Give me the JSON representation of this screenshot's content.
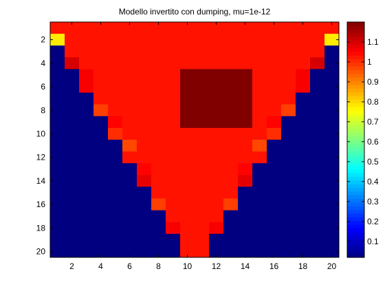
{
  "chart_data": {
    "type": "heatmap",
    "title": "Modello invertito con dumping, mu=1e-12",
    "xlabel": "",
    "ylabel": "",
    "xlim": [
      0.5,
      20.5
    ],
    "ylim": [
      0.5,
      20.5
    ],
    "y_reversed": true,
    "xticks": [
      2,
      4,
      6,
      8,
      10,
      12,
      14,
      16,
      18,
      20
    ],
    "yticks": [
      2,
      4,
      6,
      8,
      10,
      12,
      14,
      16,
      18,
      20
    ],
    "colormap": "jet",
    "clim": [
      0.02,
      1.2
    ],
    "colorbar": {
      "ticks": [
        0.1,
        0.2,
        0.3,
        0.4,
        0.5,
        0.6,
        0.7,
        0.8,
        0.9,
        1,
        1.1
      ],
      "tick_labels": [
        "0.1",
        "0.2",
        "0.3",
        "0.4",
        "0.5",
        "0.6",
        "0.7",
        "0.8",
        "0.9",
        "1",
        "1.1"
      ]
    },
    "values": [
      [
        1.03,
        1.03,
        1.03,
        1.03,
        1.03,
        1.03,
        1.03,
        1.03,
        1.03,
        1.03,
        1.03,
        1.03,
        1.03,
        1.03,
        1.03,
        1.03,
        1.03,
        1.03,
        1.03,
        1.03
      ],
      [
        0.78,
        1.03,
        1.03,
        1.03,
        1.03,
        1.03,
        1.03,
        1.03,
        1.03,
        1.03,
        1.03,
        1.03,
        1.03,
        1.03,
        1.03,
        1.03,
        1.03,
        1.03,
        1.03,
        0.78
      ],
      [
        0.02,
        1.03,
        1.03,
        1.03,
        1.03,
        1.03,
        1.03,
        1.03,
        1.03,
        1.03,
        1.03,
        1.03,
        1.03,
        1.03,
        1.03,
        1.03,
        1.03,
        1.03,
        1.03,
        0.02
      ],
      [
        0.02,
        1.1,
        1.03,
        1.03,
        1.03,
        1.03,
        1.03,
        1.03,
        1.03,
        1.03,
        1.03,
        1.03,
        1.03,
        1.03,
        1.03,
        1.03,
        1.03,
        1.03,
        1.1,
        0.02
      ],
      [
        0.02,
        0.02,
        1.06,
        1.03,
        1.03,
        1.03,
        1.03,
        1.03,
        1.03,
        1.2,
        1.2,
        1.2,
        1.2,
        1.2,
        1.03,
        1.03,
        1.03,
        1.06,
        0.02,
        0.02
      ],
      [
        0.02,
        0.02,
        1.06,
        1.03,
        1.03,
        1.03,
        1.03,
        1.03,
        1.03,
        1.2,
        1.2,
        1.2,
        1.2,
        1.2,
        1.03,
        1.03,
        1.03,
        1.06,
        0.02,
        0.02
      ],
      [
        0.02,
        0.02,
        0.02,
        1.03,
        1.03,
        1.03,
        1.03,
        1.03,
        1.03,
        1.2,
        1.2,
        1.2,
        1.2,
        1.2,
        1.03,
        1.03,
        1.03,
        0.02,
        0.02,
        0.02
      ],
      [
        0.02,
        0.02,
        0.02,
        0.98,
        1.03,
        1.03,
        1.03,
        1.03,
        1.03,
        1.2,
        1.2,
        1.2,
        1.2,
        1.2,
        1.03,
        1.03,
        0.98,
        0.02,
        0.02,
        0.02
      ],
      [
        0.02,
        0.02,
        0.02,
        0.02,
        1.05,
        1.03,
        1.03,
        1.03,
        1.03,
        1.2,
        1.2,
        1.2,
        1.2,
        1.2,
        1.03,
        1.05,
        0.02,
        0.02,
        0.02,
        0.02
      ],
      [
        0.02,
        0.02,
        0.02,
        0.02,
        1.0,
        1.03,
        1.03,
        1.03,
        1.03,
        1.03,
        1.03,
        1.03,
        1.03,
        1.03,
        1.03,
        1.0,
        0.02,
        0.02,
        0.02,
        0.02
      ],
      [
        0.02,
        0.02,
        0.02,
        0.02,
        0.02,
        0.97,
        1.03,
        1.03,
        1.03,
        1.03,
        1.03,
        1.03,
        1.03,
        1.03,
        0.97,
        0.02,
        0.02,
        0.02,
        0.02,
        0.02
      ],
      [
        0.02,
        0.02,
        0.02,
        0.02,
        0.02,
        1.03,
        1.03,
        1.03,
        1.03,
        1.03,
        1.03,
        1.03,
        1.03,
        1.03,
        1.03,
        0.02,
        0.02,
        0.02,
        0.02,
        0.02
      ],
      [
        0.02,
        0.02,
        0.02,
        0.02,
        0.02,
        0.02,
        1.05,
        1.03,
        1.03,
        1.03,
        1.03,
        1.03,
        1.03,
        1.05,
        0.02,
        0.02,
        0.02,
        0.02,
        0.02,
        0.02
      ],
      [
        0.02,
        0.02,
        0.02,
        0.02,
        0.02,
        0.02,
        1.08,
        1.03,
        1.03,
        1.03,
        1.03,
        1.03,
        1.03,
        1.08,
        0.02,
        0.02,
        0.02,
        0.02,
        0.02,
        0.02
      ],
      [
        0.02,
        0.02,
        0.02,
        0.02,
        0.02,
        0.02,
        0.02,
        1.03,
        1.03,
        1.03,
        1.03,
        1.03,
        1.03,
        0.02,
        0.02,
        0.02,
        0.02,
        0.02,
        0.02,
        0.02
      ],
      [
        0.02,
        0.02,
        0.02,
        0.02,
        0.02,
        0.02,
        0.02,
        0.98,
        1.03,
        1.03,
        1.03,
        1.03,
        0.98,
        0.02,
        0.02,
        0.02,
        0.02,
        0.02,
        0.02,
        0.02
      ],
      [
        0.02,
        0.02,
        0.02,
        0.02,
        0.02,
        0.02,
        0.02,
        0.02,
        1.03,
        1.03,
        1.03,
        1.03,
        0.02,
        0.02,
        0.02,
        0.02,
        0.02,
        0.02,
        0.02,
        0.02
      ],
      [
        0.02,
        0.02,
        0.02,
        0.02,
        0.02,
        0.02,
        0.02,
        0.02,
        1.06,
        1.03,
        1.03,
        1.06,
        0.02,
        0.02,
        0.02,
        0.02,
        0.02,
        0.02,
        0.02,
        0.02
      ],
      [
        0.02,
        0.02,
        0.02,
        0.02,
        0.02,
        0.02,
        0.02,
        0.02,
        0.02,
        1.03,
        1.03,
        0.02,
        0.02,
        0.02,
        0.02,
        0.02,
        0.02,
        0.02,
        0.02,
        0.02
      ],
      [
        0.02,
        0.02,
        0.02,
        0.02,
        0.02,
        0.02,
        0.02,
        0.02,
        0.02,
        1.03,
        1.03,
        0.02,
        0.02,
        0.02,
        0.02,
        0.02,
        0.02,
        0.02,
        0.02,
        0.02
      ]
    ]
  }
}
